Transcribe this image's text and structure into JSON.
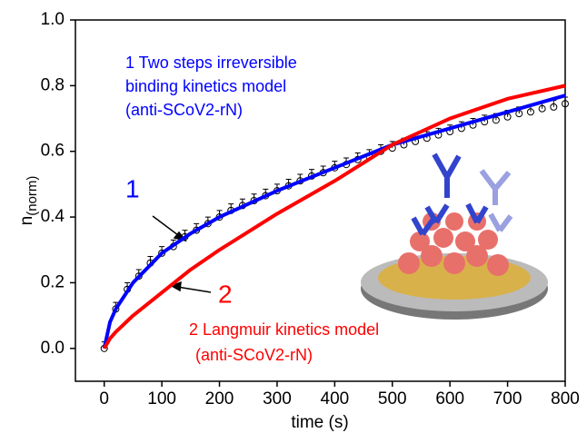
{
  "chart_data": {
    "type": "line",
    "xlabel": "time (s)",
    "ylabel": {
      "text": "n",
      "subscript": "(norm)"
    },
    "xlim": [
      -50,
      800
    ],
    "ylim": [
      -0.1,
      1.0
    ],
    "xticks": [
      0,
      100,
      200,
      300,
      400,
      500,
      600,
      700,
      800
    ],
    "yticks": [
      {
        "value": 0,
        "label": "0.0"
      },
      0.2,
      0.4,
      0.6,
      0.8,
      {
        "value": 1,
        "label": "1.0"
      }
    ],
    "series": [
      {
        "kind": "points",
        "color": "#000000",
        "error": 0.02,
        "x": [
          0,
          20,
          40,
          60,
          80,
          100,
          120,
          140,
          160,
          180,
          200,
          220,
          240,
          260,
          280,
          300,
          320,
          340,
          360,
          380,
          400,
          420,
          440,
          460,
          480,
          500,
          520,
          540,
          560,
          580,
          600,
          620,
          640,
          660,
          680,
          700,
          720,
          740,
          760,
          780,
          800
        ],
        "values": [
          0,
          0.12,
          0.18,
          0.22,
          0.26,
          0.29,
          0.31,
          0.34,
          0.36,
          0.38,
          0.4,
          0.42,
          0.435,
          0.45,
          0.465,
          0.48,
          0.495,
          0.51,
          0.525,
          0.535,
          0.55,
          0.56,
          0.575,
          0.585,
          0.6,
          0.61,
          0.62,
          0.63,
          0.64,
          0.65,
          0.66,
          0.67,
          0.68,
          0.69,
          0.695,
          0.705,
          0.715,
          0.72,
          0.73,
          0.735,
          0.745
        ]
      },
      {
        "kind": "fit",
        "color": "#0000ff",
        "x": [
          0,
          10,
          20,
          50,
          100,
          150,
          200,
          300,
          400,
          500,
          600,
          700,
          800
        ],
        "values": [
          0,
          0.08,
          0.12,
          0.2,
          0.29,
          0.35,
          0.4,
          0.48,
          0.55,
          0.62,
          0.67,
          0.72,
          0.77
        ]
      },
      {
        "kind": "fit",
        "color": "#ff0000",
        "x": [
          0,
          10,
          20,
          50,
          100,
          150,
          200,
          300,
          400,
          500,
          600,
          700,
          800
        ],
        "values": [
          0,
          0.03,
          0.05,
          0.1,
          0.17,
          0.24,
          0.3,
          0.41,
          0.51,
          0.62,
          0.7,
          0.76,
          0.8
        ]
      }
    ],
    "annotations": {
      "label1": "1",
      "label2": "2",
      "model1": [
        "1 Two steps irreversible",
        "binding kinetics model",
        "(anti-SCoV2-rN)"
      ],
      "model2": [
        "2 Langmuir kinetics model",
        "(anti-SCoV2-rN)"
      ]
    }
  }
}
